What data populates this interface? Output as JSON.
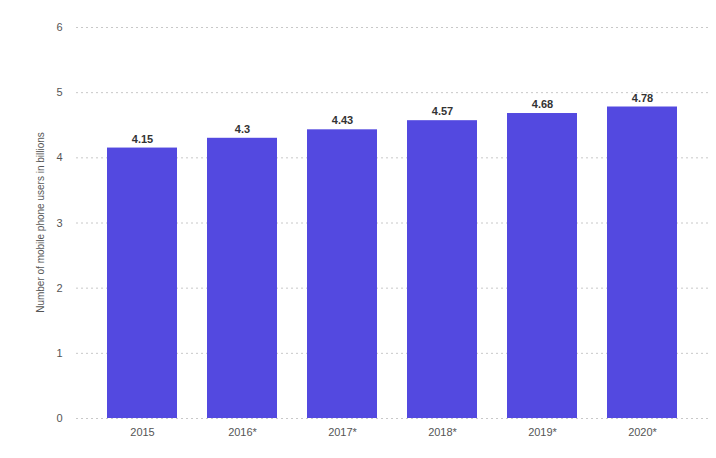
{
  "chart_data": {
    "type": "bar",
    "y_label": "Number of mobile phone users in billions",
    "categories": [
      "2015",
      "2016*",
      "2017*",
      "2018*",
      "2019*",
      "2020*"
    ],
    "values": [
      4.15,
      4.3,
      4.43,
      4.57,
      4.68,
      4.78
    ],
    "color": "#5349e0",
    "ylim": [
      0,
      6
    ],
    "yticks": [
      0,
      1,
      2,
      3,
      4,
      5,
      6
    ],
    "grid": true,
    "data_labels": true
  }
}
